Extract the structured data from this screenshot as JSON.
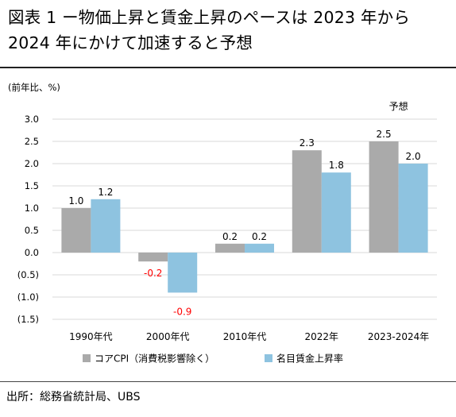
{
  "title": "図表 1 ー物価上昇と賃金上昇のペースは 2023 年から 2024 年にかけて加速すると予想",
  "source": "出所：総務省統計局、UBS",
  "colors": {
    "cpi": "#aaaaaa",
    "wage": "#8ec3e0",
    "negative_label": "#ff0000",
    "grid": "#d9d9d9"
  },
  "chart_data": {
    "type": "bar",
    "unit_label": "(前年比、%)",
    "categories": [
      "1990年代",
      "2000年代",
      "2010年代",
      "2022年",
      "2023-2024年"
    ],
    "category_annotation": {
      "category_index": 4,
      "text": "予想"
    },
    "series": [
      {
        "name": "コアCPI（消費税影響除く）",
        "values": [
          1.0,
          -0.2,
          0.2,
          2.3,
          2.5
        ],
        "labels": [
          "1.0",
          "-0.2",
          "0.2",
          "2.3",
          "2.5"
        ]
      },
      {
        "name": "名目賃金上昇率",
        "values": [
          1.2,
          -0.9,
          0.2,
          1.8,
          2.0
        ],
        "labels": [
          "1.2",
          "-0.9",
          "0.2",
          "1.8",
          "2.0"
        ]
      }
    ],
    "ylim": [
      -1.5,
      3.0
    ],
    "yticks": [
      3.0,
      2.5,
      2.0,
      1.5,
      1.0,
      0.5,
      0.0,
      -0.5,
      -1.0,
      -1.5
    ],
    "ytick_labels": [
      "3.0",
      "2.5",
      "2.0",
      "1.5",
      "1.0",
      "0.5",
      "0.0",
      "(0.5)",
      "(1.0)",
      "(1.5)"
    ],
    "grid": true,
    "legend": "bottom"
  }
}
